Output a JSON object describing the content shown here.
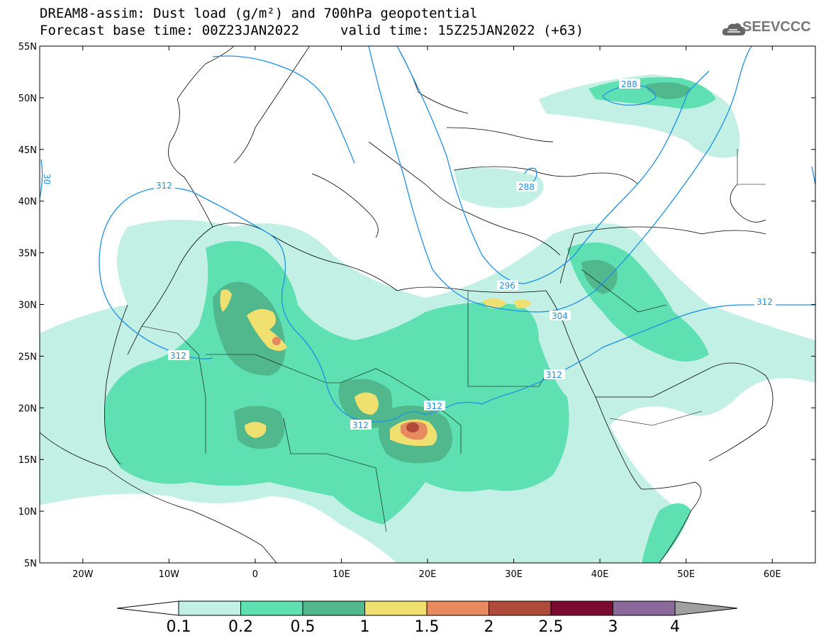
{
  "header": {
    "title_line1": "DREAM8-assim: Dust load (g/m²) and 700hPa geopotential",
    "title_line2_left": "Forecast base time: 00Z23JAN2022",
    "title_line2_right": "valid time: 15Z25JAN2022 (+63)",
    "logo_text": "SEEVCCC"
  },
  "map": {
    "lon_range": [
      -25,
      65
    ],
    "lat_range": [
      5,
      55
    ],
    "lat_ticks": [
      "55N",
      "50N",
      "45N",
      "40N",
      "35N",
      "30N",
      "25N",
      "20N",
      "15N",
      "10N",
      "5N"
    ],
    "lon_ticks": [
      "20W",
      "10W",
      "0",
      "10E",
      "20E",
      "30E",
      "40E",
      "50E",
      "60E"
    ],
    "contour_labels": [
      "288",
      "288",
      "296",
      "304",
      "312",
      "312",
      "312",
      "312",
      "312",
      "312",
      "30"
    ],
    "contour_color": "#1e90e6"
  },
  "colorbar": {
    "labels": [
      "0.1",
      "0.2",
      "0.5",
      "1",
      "1.5",
      "2",
      "2.5",
      "3",
      "4"
    ],
    "colors": [
      "#c2f0e5",
      "#5ee0b2",
      "#50b88c",
      "#f0e070",
      "#e88a60",
      "#b04a3a",
      "#7a0a30",
      "#8a6a9a",
      "#a0a0a0"
    ]
  }
}
